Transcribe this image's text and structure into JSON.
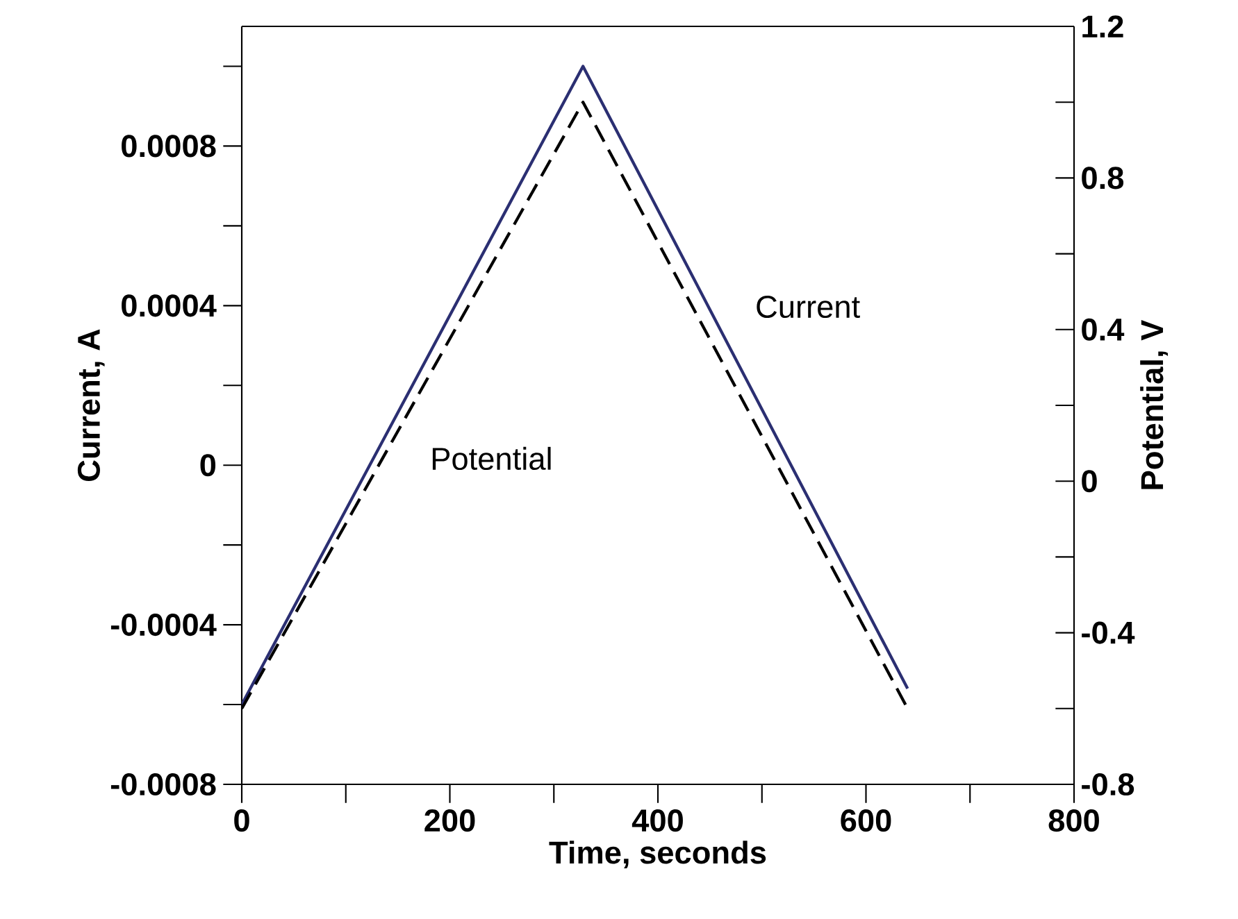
{
  "chart_data": {
    "type": "line",
    "xlabel": "Time, seconds",
    "ylabel": "Current, A",
    "y2label": "Potential, V",
    "xlim": [
      0,
      800
    ],
    "xticks": [
      0,
      {
        "value": 100,
        "label": null
      },
      200,
      {
        "value": 300,
        "label": null
      },
      400,
      {
        "value": 500,
        "label": null
      },
      600,
      {
        "value": 700,
        "label": null
      },
      800
    ],
    "ylim": [
      -0.0008,
      0.0011
    ],
    "yticks": [
      -0.0008,
      {
        "value": -0.0006,
        "label": null
      },
      -0.0004,
      {
        "value": -0.0002,
        "label": null
      },
      0,
      {
        "value": 0.0002,
        "label": null
      },
      0.0004,
      {
        "value": 0.0006,
        "label": null
      },
      0.0008,
      {
        "value": 0.001,
        "label": null
      }
    ],
    "y2lim": [
      -0.8,
      1.2
    ],
    "y2ticks": [
      -0.8,
      {
        "value": -0.6,
        "label": null
      },
      -0.4,
      {
        "value": -0.2,
        "label": null
      },
      0,
      {
        "value": 0.2,
        "label": null
      },
      0.4,
      {
        "value": 0.6,
        "label": null
      },
      0.8,
      {
        "value": 1.0,
        "label": null
      },
      1.2
    ],
    "series": [
      {
        "name": "Current",
        "color": "#2b2f72",
        "x": [
          0,
          328,
          640
        ],
        "values": [
          -0.0006,
          0.001,
          -0.00056
        ],
        "line_style": "solid"
      },
      {
        "name": "Potential",
        "color": "#000000",
        "axis": "y2",
        "x": [
          0,
          328,
          640
        ],
        "values": [
          -0.6,
          1.0,
          -0.6
        ],
        "line_style": "dashed"
      }
    ]
  }
}
